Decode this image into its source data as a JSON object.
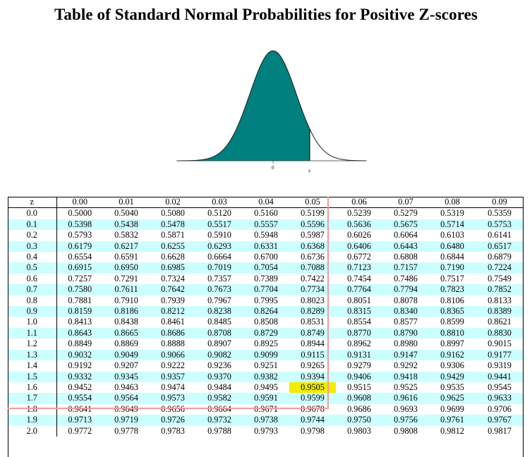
{
  "title": "Table of Standard Normal Probabilities for Positive Z-scores",
  "figure": {
    "mean_label": "0",
    "z_label": "z",
    "fill_color": "#007f7f"
  },
  "colors": {
    "row_band": "#ccffff",
    "guide_line": "#f29b9b",
    "highlight": "#f2ec00"
  },
  "table": {
    "header": [
      "z",
      "0.00",
      "0.01",
      "0.02",
      "0.03",
      "0.04",
      "0.05",
      "0.06",
      "0.07",
      "0.08",
      "0.09"
    ],
    "rows": [
      [
        "0.0",
        "0.5000",
        "0.5040",
        "0.5080",
        "0.5120",
        "0.5160",
        "0.5199",
        "0.5239",
        "0.5279",
        "0.5319",
        "0.5359"
      ],
      [
        "0.1",
        "0.5398",
        "0.5438",
        "0.5478",
        "0.5517",
        "0.5557",
        "0.5596",
        "0.5636",
        "0.5675",
        "0.5714",
        "0.5753"
      ],
      [
        "0.2",
        "0.5793",
        "0.5832",
        "0.5871",
        "0.5910",
        "0.5948",
        "0.5987",
        "0.6026",
        "0.6064",
        "0.6103",
        "0.6141"
      ],
      [
        "0.3",
        "0.6179",
        "0.6217",
        "0.6255",
        "0.6293",
        "0.6331",
        "0.6368",
        "0.6406",
        "0.6443",
        "0.6480",
        "0.6517"
      ],
      [
        "0.4",
        "0.6554",
        "0.6591",
        "0.6628",
        "0.6664",
        "0.6700",
        "0.6736",
        "0.6772",
        "0.6808",
        "0.6844",
        "0.6879"
      ],
      [
        "0.5",
        "0.6915",
        "0.6950",
        "0.6985",
        "0.7019",
        "0.7054",
        "0.7088",
        "0.7123",
        "0.7157",
        "0.7190",
        "0.7224"
      ],
      [
        "0.6",
        "0.7257",
        "0.7291",
        "0.7324",
        "0.7357",
        "0.7389",
        "0.7422",
        "0.7454",
        "0.7486",
        "0.7517",
        "0.7549"
      ],
      [
        "0.7",
        "0.7580",
        "0.7611",
        "0.7642",
        "0.7673",
        "0.7704",
        "0.7734",
        "0.7764",
        "0.7794",
        "0.7823",
        "0.7852"
      ],
      [
        "0.8",
        "0.7881",
        "0.7910",
        "0.7939",
        "0.7967",
        "0.7995",
        "0.8023",
        "0.8051",
        "0.8078",
        "0.8106",
        "0.8133"
      ],
      [
        "0.9",
        "0.8159",
        "0.8186",
        "0.8212",
        "0.8238",
        "0.8264",
        "0.8289",
        "0.8315",
        "0.8340",
        "0.8365",
        "0.8389"
      ],
      [
        "1.0",
        "0.8413",
        "0.8438",
        "0.8461",
        "0.8485",
        "0.8508",
        "0.8531",
        "0.8554",
        "0.8577",
        "0.8599",
        "0.8621"
      ],
      [
        "1.1",
        "0.8643",
        "0.8665",
        "0.8686",
        "0.8708",
        "0.8729",
        "0.8749",
        "0.8770",
        "0.8790",
        "0.8810",
        "0.8830"
      ],
      [
        "1.2",
        "0.8849",
        "0.8869",
        "0.8888",
        "0.8907",
        "0.8925",
        "0.8944",
        "0.8962",
        "0.8980",
        "0.8997",
        "0.9015"
      ],
      [
        "1.3",
        "0.9032",
        "0.9049",
        "0.9066",
        "0.9082",
        "0.9099",
        "0.9115",
        "0.9131",
        "0.9147",
        "0.9162",
        "0.9177"
      ],
      [
        "1.4",
        "0.9192",
        "0.9207",
        "0.9222",
        "0.9236",
        "0.9251",
        "0.9265",
        "0.9279",
        "0.9292",
        "0.9306",
        "0.9319"
      ],
      [
        "1.5",
        "0.9332",
        "0.9345",
        "0.9357",
        "0.9370",
        "0.9382",
        "0.9394",
        "0.9406",
        "0.9418",
        "0.9429",
        "0.9441"
      ],
      [
        "1.6",
        "0.9452",
        "0.9463",
        "0.9474",
        "0.9484",
        "0.9495",
        "0.9505",
        "0.9515",
        "0.9525",
        "0.9535",
        "0.9545"
      ],
      [
        "1.7",
        "0.9554",
        "0.9564",
        "0.9573",
        "0.9582",
        "0.9591",
        "0.9599",
        "0.9608",
        "0.9616",
        "0.9625",
        "0.9633"
      ],
      [
        "1.8",
        "0.9641",
        "0.9649",
        "0.9656",
        "0.9664",
        "0.9671",
        "0.9678",
        "0.9686",
        "0.9693",
        "0.9699",
        "0.9706"
      ],
      [
        "1.9",
        "0.9713",
        "0.9719",
        "0.9726",
        "0.9732",
        "0.9738",
        "0.9744",
        "0.9750",
        "0.9756",
        "0.9761",
        "0.9767"
      ],
      [
        "2.0",
        "0.9772",
        "0.9778",
        "0.9783",
        "0.9788",
        "0.9793",
        "0.9798",
        "0.9803",
        "0.9808",
        "0.9812",
        "0.9817"
      ]
    ],
    "highlight": {
      "row": "1.6",
      "column": "0.05",
      "value": "0.9505"
    }
  }
}
